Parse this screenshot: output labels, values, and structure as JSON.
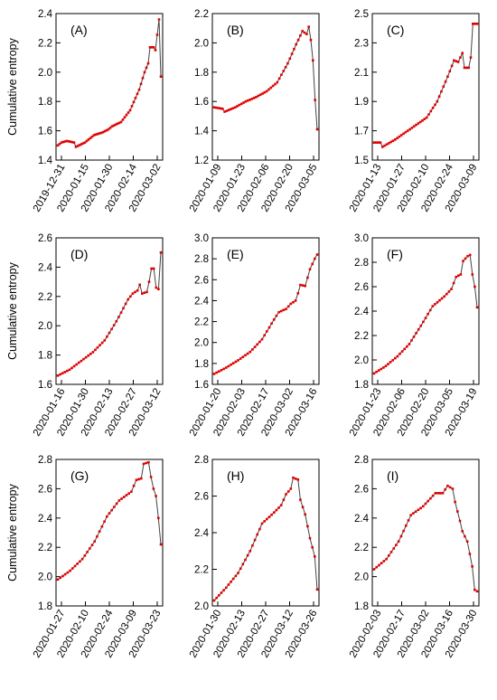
{
  "chart_data": [
    {
      "type": "line",
      "label": "(A)",
      "ylabel": "Cumulative entropy",
      "ylim": [
        1.4,
        2.4
      ],
      "yticks": [
        1.4,
        1.6,
        1.8,
        2.0,
        2.2,
        2.4
      ],
      "xticks": [
        "2019-12-31",
        "2020-01-15",
        "2020-01-30",
        "2020-02-14",
        "2020-03-02"
      ],
      "series": [
        {
          "color": "#e00000",
          "anchors": [
            [
              0,
              1.5
            ],
            [
              2,
              1.52
            ],
            [
              5,
              1.53
            ],
            [
              9,
              1.52
            ],
            [
              10,
              1.49
            ],
            [
              15,
              1.52
            ],
            [
              20,
              1.57
            ],
            [
              25,
              1.59
            ],
            [
              28,
              1.61
            ],
            [
              30,
              1.63
            ],
            [
              35,
              1.66
            ],
            [
              40,
              1.74
            ],
            [
              45,
              1.88
            ],
            [
              48,
              2.0
            ],
            [
              50,
              2.06
            ],
            [
              51,
              2.17
            ],
            [
              53,
              2.17
            ],
            [
              54,
              2.15
            ],
            [
              56,
              2.36
            ],
            [
              57,
              1.97
            ]
          ]
        }
      ]
    },
    {
      "type": "line",
      "label": "(B)",
      "ylabel": "",
      "ylim": [
        1.2,
        2.2
      ],
      "yticks": [
        1.2,
        1.4,
        1.6,
        1.8,
        2.0,
        2.2
      ],
      "xticks": [
        "2020-01-09",
        "2020-01-23",
        "2020-02-06",
        "2020-02-20",
        "2020-03-05"
      ],
      "series": [
        {
          "color": "#e00000",
          "anchors": [
            [
              0,
              1.56
            ],
            [
              4,
              1.55
            ],
            [
              5,
              1.53
            ],
            [
              10,
              1.56
            ],
            [
              15,
              1.6
            ],
            [
              20,
              1.63
            ],
            [
              25,
              1.67
            ],
            [
              30,
              1.73
            ],
            [
              35,
              1.86
            ],
            [
              39,
              1.99
            ],
            [
              42,
              2.08
            ],
            [
              44,
              2.06
            ],
            [
              45,
              2.11
            ],
            [
              46,
              2.02
            ],
            [
              47,
              1.88
            ],
            [
              48,
              1.61
            ],
            [
              49,
              1.41
            ]
          ]
        }
      ]
    },
    {
      "type": "line",
      "label": "(C)",
      "ylabel": "",
      "ylim": [
        1.5,
        2.5
      ],
      "yticks": [
        1.5,
        1.7,
        1.9,
        2.1,
        2.3,
        2.5
      ],
      "xticks": [
        "2020-01-13",
        "2020-01-27",
        "2020-02-10",
        "2020-02-24",
        "2020-03-09"
      ],
      "series": [
        {
          "color": "#e00000",
          "anchors": [
            [
              0,
              1.62
            ],
            [
              3,
              1.62
            ],
            [
              4,
              1.59
            ],
            [
              10,
              1.64
            ],
            [
              15,
              1.69
            ],
            [
              20,
              1.74
            ],
            [
              25,
              1.79
            ],
            [
              30,
              1.9
            ],
            [
              35,
              2.07
            ],
            [
              38,
              2.18
            ],
            [
              40,
              2.17
            ],
            [
              42,
              2.23
            ],
            [
              43,
              2.13
            ],
            [
              45,
              2.13
            ],
            [
              46,
              2.2
            ],
            [
              47,
              2.43
            ],
            [
              49,
              2.43
            ]
          ]
        }
      ]
    },
    {
      "type": "line",
      "label": "(D)",
      "ylabel": "Cumulative entropy",
      "ylim": [
        1.6,
        2.6
      ],
      "yticks": [
        1.6,
        1.8,
        2.0,
        2.2,
        2.4,
        2.6
      ],
      "xticks": [
        "2020-01-16",
        "2020-01-30",
        "2020-02-13",
        "2020-02-27",
        "2020-03-12"
      ],
      "series": [
        {
          "color": "#e00000",
          "anchors": [
            [
              0,
              1.66
            ],
            [
              5,
              1.7
            ],
            [
              10,
              1.76
            ],
            [
              15,
              1.82
            ],
            [
              20,
              1.9
            ],
            [
              25,
              2.03
            ],
            [
              30,
              2.18
            ],
            [
              32,
              2.22
            ],
            [
              34,
              2.24
            ],
            [
              35,
              2.28
            ],
            [
              36,
              2.22
            ],
            [
              38,
              2.23
            ],
            [
              39,
              2.3
            ],
            [
              40,
              2.39
            ],
            [
              41,
              2.39
            ],
            [
              42,
              2.26
            ],
            [
              43,
              2.25
            ],
            [
              44,
              2.5
            ]
          ]
        }
      ]
    },
    {
      "type": "line",
      "label": "(E)",
      "ylabel": "",
      "ylim": [
        1.6,
        3.0
      ],
      "yticks": [
        1.6,
        1.8,
        2.0,
        2.2,
        2.4,
        2.6,
        2.8,
        3.0
      ],
      "xticks": [
        "2020-01-20",
        "2020-02-03",
        "2020-02-17",
        "2020-03-02",
        "2020-03-16"
      ],
      "series": [
        {
          "color": "#e00000",
          "anchors": [
            [
              0,
              1.7
            ],
            [
              5,
              1.76
            ],
            [
              10,
              1.83
            ],
            [
              15,
              1.91
            ],
            [
              20,
              2.03
            ],
            [
              25,
              2.22
            ],
            [
              27,
              2.29
            ],
            [
              30,
              2.32
            ],
            [
              32,
              2.37
            ],
            [
              34,
              2.4
            ],
            [
              35,
              2.47
            ],
            [
              36,
              2.55
            ],
            [
              38,
              2.54
            ],
            [
              40,
              2.7
            ],
            [
              42,
              2.8
            ],
            [
              43,
              2.84
            ]
          ]
        }
      ]
    },
    {
      "type": "line",
      "label": "(F)",
      "ylabel": "",
      "ylim": [
        1.8,
        3.0
      ],
      "yticks": [
        1.8,
        2.0,
        2.2,
        2.4,
        2.6,
        2.8,
        3.0
      ],
      "xticks": [
        "2020-01-23",
        "2020-02-06",
        "2020-02-20",
        "2020-03-05",
        "2020-03-19"
      ],
      "series": [
        {
          "color": "#e00000",
          "anchors": [
            [
              0,
              1.89
            ],
            [
              5,
              1.95
            ],
            [
              10,
              2.03
            ],
            [
              15,
              2.13
            ],
            [
              20,
              2.28
            ],
            [
              25,
              2.44
            ],
            [
              30,
              2.52
            ],
            [
              33,
              2.58
            ],
            [
              35,
              2.68
            ],
            [
              37,
              2.7
            ],
            [
              38,
              2.81
            ],
            [
              40,
              2.85
            ],
            [
              41,
              2.86
            ],
            [
              42,
              2.7
            ],
            [
              43,
              2.6
            ],
            [
              44,
              2.43
            ]
          ]
        }
      ]
    },
    {
      "type": "line",
      "label": "(G)",
      "ylabel": "Cumulative entropy",
      "ylim": [
        1.8,
        2.8
      ],
      "yticks": [
        1.8,
        2.0,
        2.2,
        2.4,
        2.6,
        2.8
      ],
      "xticks": [
        "2020-01-27",
        "2020-02-10",
        "2020-02-24",
        "2020-03-09",
        "2020-03-23"
      ],
      "series": [
        {
          "color": "#e00000",
          "anchors": [
            [
              0,
              1.98
            ],
            [
              5,
              2.04
            ],
            [
              10,
              2.12
            ],
            [
              15,
              2.24
            ],
            [
              20,
              2.41
            ],
            [
              25,
              2.52
            ],
            [
              30,
              2.58
            ],
            [
              32,
              2.66
            ],
            [
              34,
              2.67
            ],
            [
              35,
              2.77
            ],
            [
              37,
              2.78
            ],
            [
              38,
              2.68
            ],
            [
              39,
              2.6
            ],
            [
              40,
              2.55
            ],
            [
              41,
              2.4
            ],
            [
              42,
              2.22
            ]
          ]
        }
      ]
    },
    {
      "type": "line",
      "label": "(H)",
      "ylabel": "",
      "ylim": [
        2.0,
        2.8
      ],
      "yticks": [
        2.0,
        2.2,
        2.4,
        2.6,
        2.8
      ],
      "xticks": [
        "2020-01-30",
        "2020-02-13",
        "2020-02-27",
        "2020-03-12",
        "2020-03-26"
      ],
      "series": [
        {
          "color": "#e00000",
          "anchors": [
            [
              0,
              2.03
            ],
            [
              5,
              2.1
            ],
            [
              10,
              2.18
            ],
            [
              15,
              2.3
            ],
            [
              20,
              2.45
            ],
            [
              25,
              2.51
            ],
            [
              28,
              2.55
            ],
            [
              30,
              2.61
            ],
            [
              32,
              2.64
            ],
            [
              33,
              2.7
            ],
            [
              35,
              2.69
            ],
            [
              36,
              2.58
            ],
            [
              38,
              2.5
            ],
            [
              40,
              2.37
            ],
            [
              42,
              2.27
            ],
            [
              43,
              2.09
            ]
          ]
        }
      ]
    },
    {
      "type": "line",
      "label": "(I)",
      "ylabel": "",
      "ylim": [
        1.8,
        2.8
      ],
      "yticks": [
        1.8,
        2.0,
        2.2,
        2.4,
        2.6,
        2.8
      ],
      "xticks": [
        "2020-02-03",
        "2020-02-17",
        "2020-03-02",
        "2020-03-16",
        "2020-03-30"
      ],
      "series": [
        {
          "color": "#e00000",
          "anchors": [
            [
              0,
              2.05
            ],
            [
              5,
              2.12
            ],
            [
              10,
              2.24
            ],
            [
              15,
              2.42
            ],
            [
              20,
              2.48
            ],
            [
              25,
              2.57
            ],
            [
              28,
              2.57
            ],
            [
              30,
              2.62
            ],
            [
              32,
              2.6
            ],
            [
              33,
              2.51
            ],
            [
              35,
              2.38
            ],
            [
              36,
              2.31
            ],
            [
              38,
              2.24
            ],
            [
              40,
              2.07
            ],
            [
              41,
              1.91
            ],
            [
              42,
              1.9
            ]
          ]
        }
      ]
    }
  ]
}
